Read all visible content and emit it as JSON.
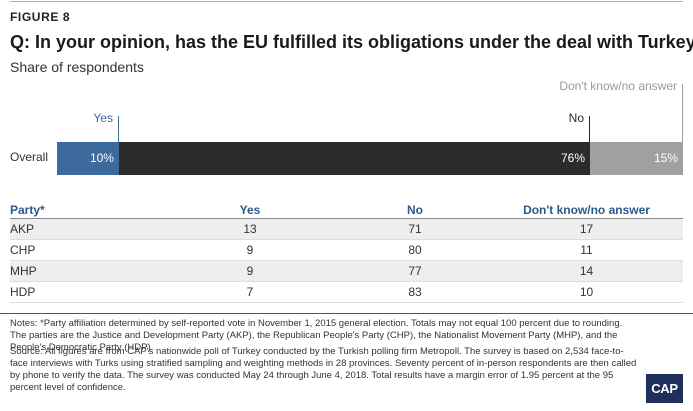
{
  "figure_label": "FIGURE 8",
  "title": "Q: In your opinion, has the EU fulfilled its obligations under the deal with Turkey?",
  "subtitle": "Share of respondents",
  "chart_data": {
    "type": "bar",
    "orientation": "horizontal",
    "stacked": true,
    "categories": [
      "Overall"
    ],
    "series": [
      {
        "name": "Yes",
        "values": [
          10
        ],
        "label": "10%",
        "color": "#3d6a9c"
      },
      {
        "name": "No",
        "values": [
          76
        ],
        "label": "76%",
        "color": "#2b2b2b"
      },
      {
        "name": "Don't know/no answer",
        "values": [
          15
        ],
        "label": "15%",
        "color": "#a0a0a0"
      }
    ],
    "xlim": [
      0,
      101
    ],
    "legend": "inline-above"
  },
  "table": {
    "headers": [
      "Party*",
      "Yes",
      "No",
      "Don't know/no answer"
    ],
    "rows": [
      [
        "AKP",
        "13",
        "71",
        "17"
      ],
      [
        "CHP",
        "9",
        "80",
        "11"
      ],
      [
        "MHP",
        "9",
        "77",
        "14"
      ],
      [
        "HDP",
        "7",
        "83",
        "10"
      ]
    ]
  },
  "notes": "Notes: *Party affiliation determined by self-reported vote in November 1, 2015 general election. Totals may not equal 100 percent due to rounding. The parties are the Justice and Development Party (AKP), the Republican People's Party (CHP), the Nationalist Movement Party (MHP), and the People's Democratic Party (HDP).",
  "source": "Source: All figures are from CAP's nationwide poll of Turkey conducted by the Turkish polling firm Metropoll. The survey is based on 2,534 face-to-face interviews with Turks using stratified sampling and weighting methods in 28 provinces. Seventy percent of in-person respondents are then called by phone to verify the data. The survey was conducted May 24 through June 4, 2018. Total results have a margin error of 1.95 percent at the 95 percent level of confidence.",
  "logo_text": "CAP"
}
